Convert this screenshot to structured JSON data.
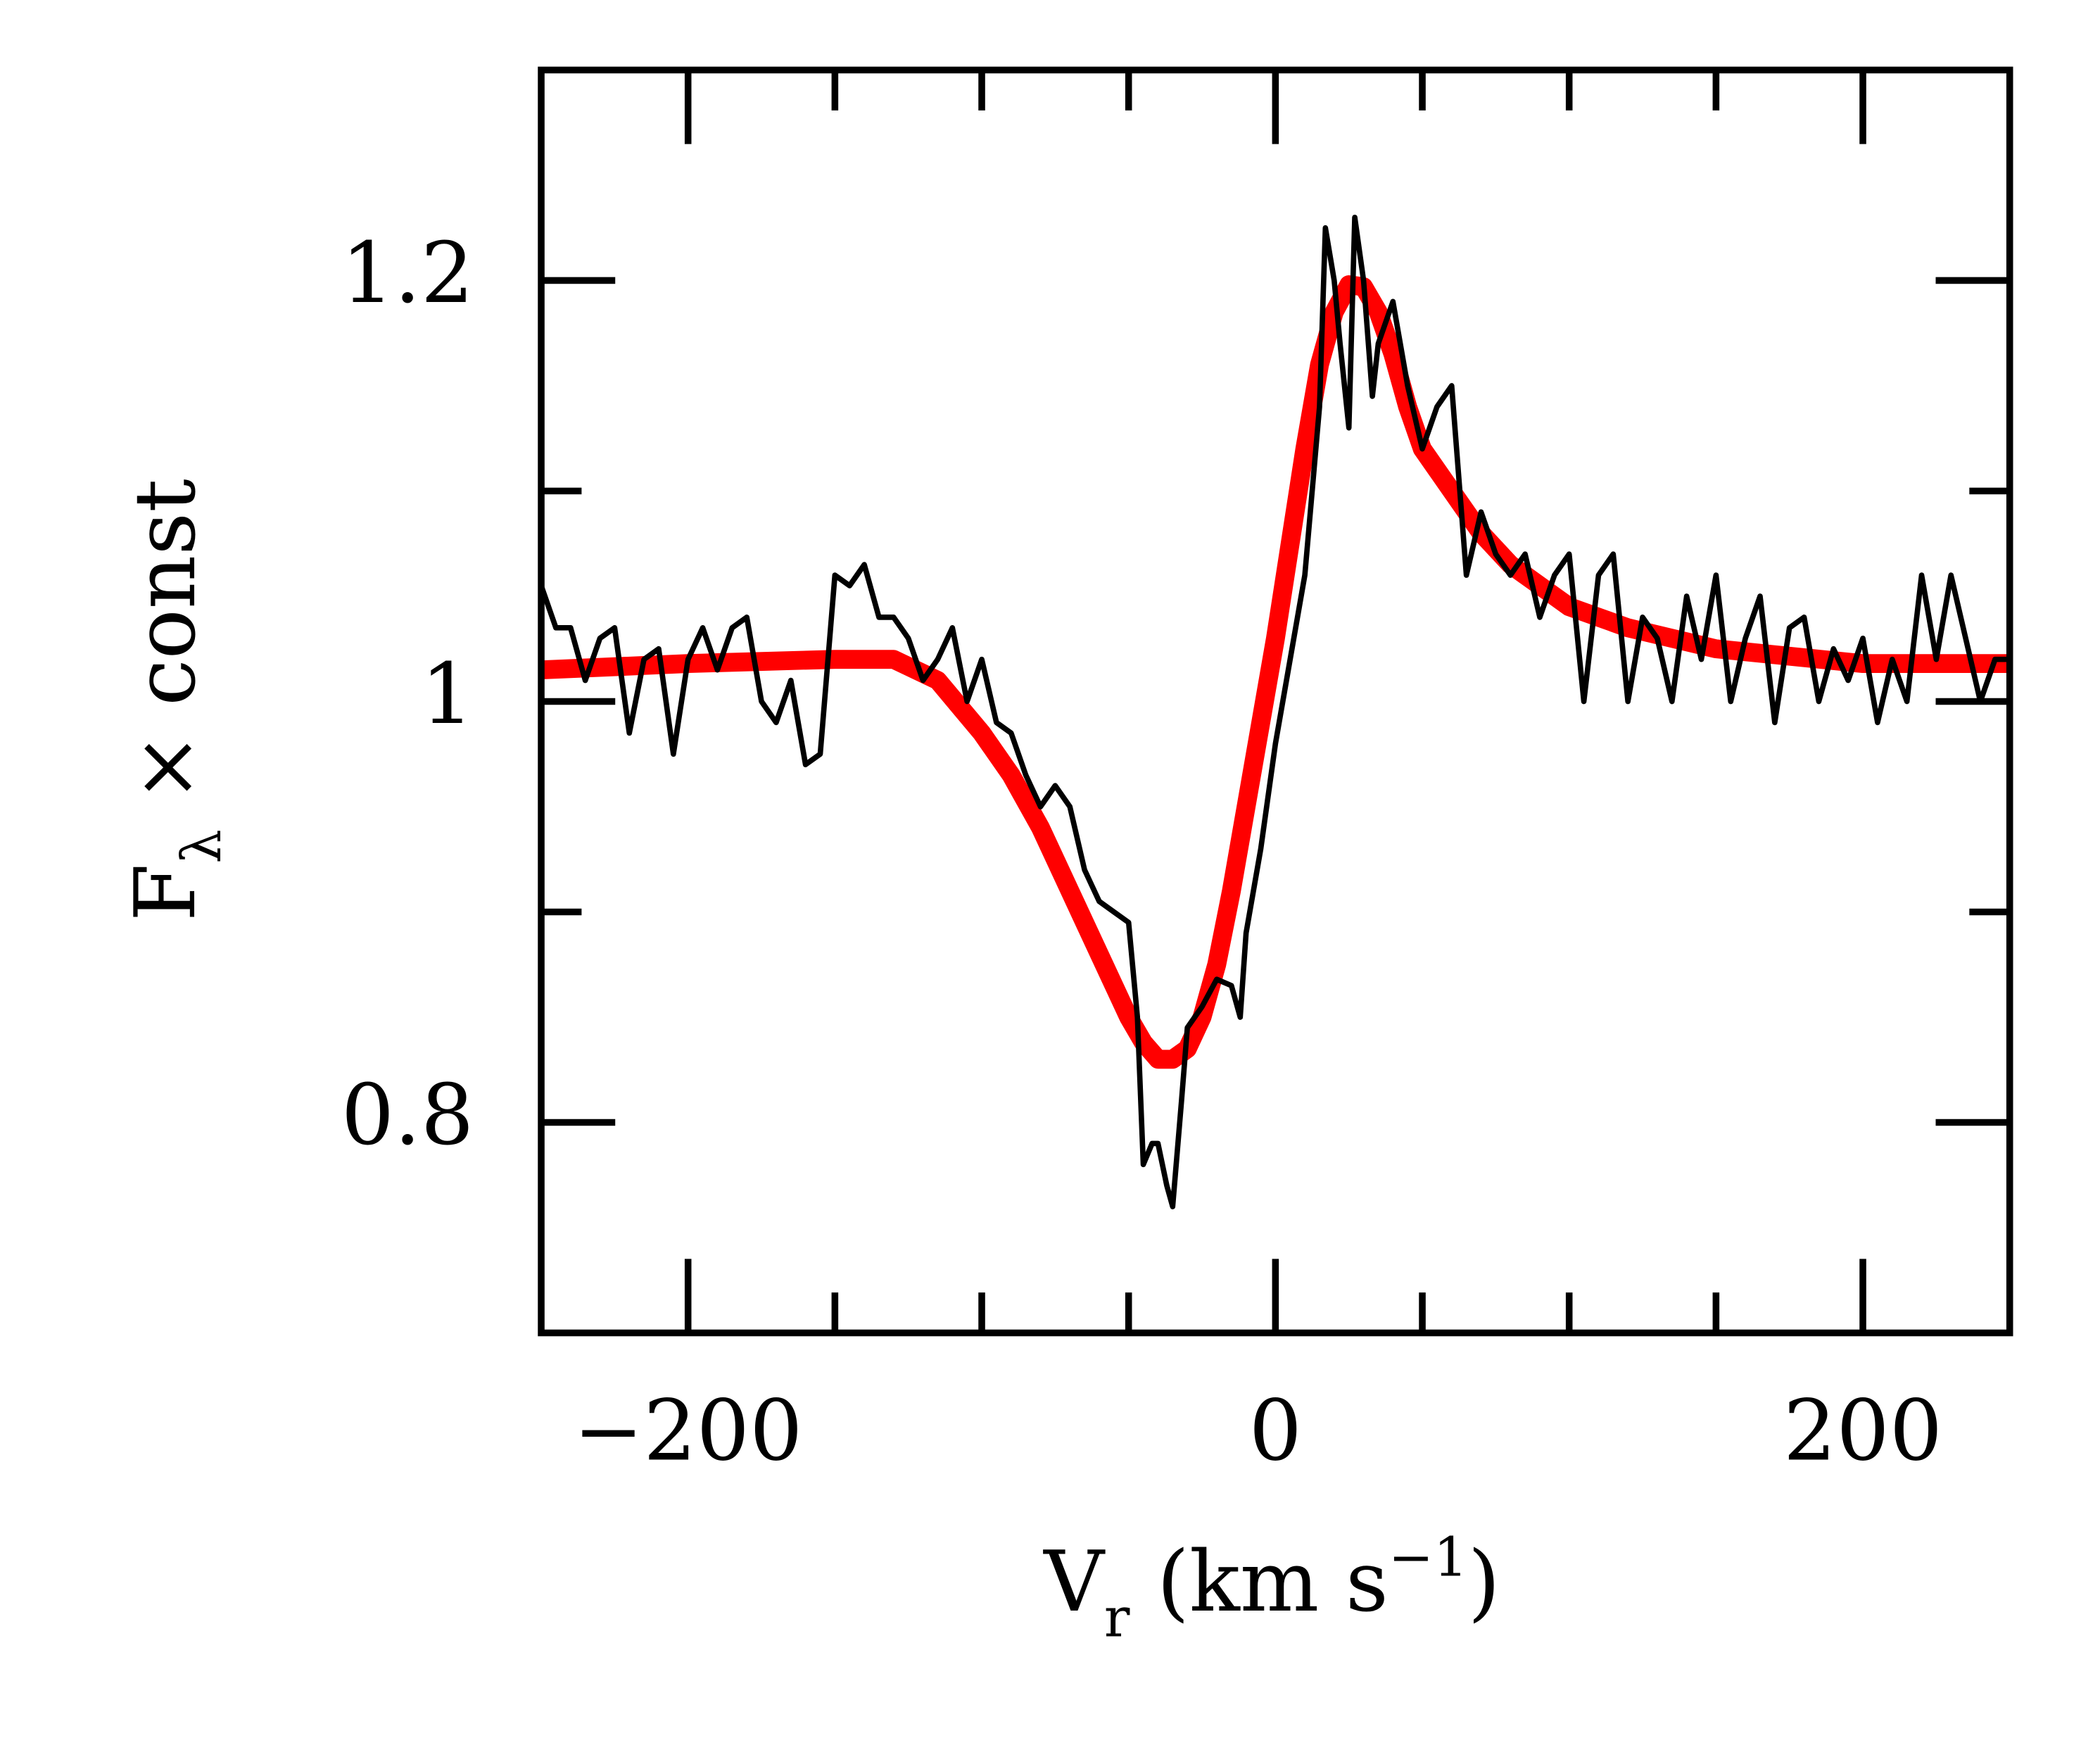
{
  "chart_data": {
    "type": "line",
    "xlabel": [
      "V",
      "r",
      "(km s",
      "−1",
      ")"
    ],
    "ylabel": [
      "F",
      "λ",
      "× const"
    ],
    "xlim": [
      -250,
      250
    ],
    "ylim": [
      0.7,
      1.3
    ],
    "xticks": [
      {
        "value": -200,
        "label": "−200"
      },
      0,
      200
    ],
    "xminor": [
      -150,
      -100,
      -50,
      50,
      100,
      150
    ],
    "yticks": [
      0.8,
      1,
      1.2
    ],
    "yminor": [
      0.9,
      1.1
    ],
    "series": [
      {
        "color": "#ff0000",
        "x": [
          -250,
          -200,
          -150,
          -130,
          -115,
          -100,
          -90,
          -80,
          -70,
          -60,
          -55,
          -50,
          -45,
          -40,
          -35,
          -30,
          -25,
          -20,
          -15,
          -10,
          -5,
          0,
          5,
          10,
          15,
          20,
          25,
          30,
          35,
          40,
          45,
          50,
          60,
          70,
          80,
          90,
          100,
          120,
          150,
          200,
          250
        ],
        "values": [
          1.015,
          1.018,
          1.02,
          1.02,
          1.01,
          0.985,
          0.965,
          0.94,
          0.91,
          0.88,
          0.865,
          0.85,
          0.838,
          0.83,
          0.83,
          0.835,
          0.85,
          0.875,
          0.91,
          0.95,
          0.99,
          1.03,
          1.075,
          1.12,
          1.16,
          1.185,
          1.198,
          1.197,
          1.185,
          1.165,
          1.14,
          1.12,
          1.1,
          1.08,
          1.065,
          1.055,
          1.045,
          1.035,
          1.025,
          1.018,
          1.018
        ]
      },
      {
        "color": "#000000",
        "x": [
          -250,
          -245,
          -240,
          -235,
          -230,
          -225,
          -220,
          -215,
          -210,
          -205,
          -200,
          -195,
          -190,
          -185,
          -180,
          -175,
          -170,
          -165,
          -160,
          -155,
          -150,
          -145,
          -140,
          -135,
          -130,
          -125,
          -120,
          -115,
          -110,
          -105,
          -100,
          -95,
          -90,
          -85,
          -80,
          -75,
          -70,
          -65,
          -60,
          -55,
          -50,
          -47,
          -45,
          -42,
          -40,
          -37,
          -35,
          -32,
          -30,
          -25,
          -20,
          -15,
          -12,
          -10,
          -5,
          0,
          5,
          10,
          15,
          17,
          20,
          22,
          25,
          27,
          30,
          33,
          35,
          40,
          45,
          50,
          55,
          60,
          65,
          70,
          75,
          80,
          85,
          90,
          95,
          100,
          105,
          110,
          115,
          120,
          125,
          130,
          135,
          140,
          145,
          150,
          155,
          160,
          165,
          170,
          175,
          180,
          185,
          190,
          195,
          200,
          205,
          210,
          215,
          220,
          225,
          230,
          235,
          240,
          245,
          250
        ],
        "values": [
          1.055,
          1.035,
          1.035,
          1.01,
          1.03,
          1.035,
          0.985,
          1.02,
          1.025,
          0.975,
          1.02,
          1.035,
          1.015,
          1.035,
          1.04,
          1.0,
          0.99,
          1.01,
          0.97,
          0.975,
          1.06,
          1.055,
          1.065,
          1.04,
          1.04,
          1.03,
          1.01,
          1.02,
          1.035,
          1.0,
          1.02,
          0.99,
          0.985,
          0.965,
          0.95,
          0.96,
          0.95,
          0.92,
          0.905,
          0.9,
          0.895,
          0.85,
          0.78,
          0.79,
          0.79,
          0.77,
          0.76,
          0.81,
          0.845,
          0.855,
          0.868,
          0.865,
          0.85,
          0.89,
          0.93,
          0.98,
          1.02,
          1.06,
          1.14,
          1.225,
          1.2,
          1.17,
          1.13,
          1.23,
          1.2,
          1.145,
          1.17,
          1.19,
          1.15,
          1.12,
          1.14,
          1.15,
          1.06,
          1.09,
          1.07,
          1.06,
          1.07,
          1.04,
          1.06,
          1.07,
          1.0,
          1.06,
          1.07,
          1.0,
          1.04,
          1.03,
          1.0,
          1.05,
          1.02,
          1.06,
          1.0,
          1.03,
          1.05,
          0.99,
          1.035,
          1.04,
          1.0,
          1.025,
          1.01,
          1.03,
          0.99,
          1.02,
          1.0,
          1.06,
          1.02,
          1.06,
          1.03,
          1.0,
          1.02,
          1.02
        ]
      }
    ]
  }
}
